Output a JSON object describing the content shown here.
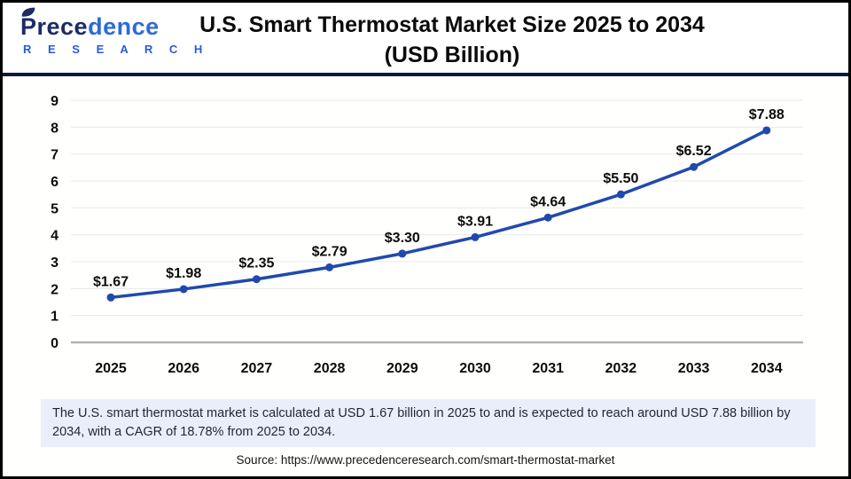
{
  "header": {
    "logo": {
      "part1": "Prece",
      "part2": "dence",
      "line2": "R E S E A R C H"
    },
    "title_line1": "U.S. Smart Thermostat Market Size 2025 to 2034",
    "title_line2": "(USD Billion)"
  },
  "chart_data": {
    "type": "line",
    "title": "U.S. Smart Thermostat Market Size 2025 to 2034 (USD Billion)",
    "categories": [
      "2025",
      "2026",
      "2027",
      "2028",
      "2029",
      "2030",
      "2031",
      "2032",
      "2033",
      "2034"
    ],
    "values": [
      1.67,
      1.98,
      2.35,
      2.79,
      3.3,
      3.91,
      4.64,
      5.5,
      6.52,
      7.88
    ],
    "point_labels": [
      "$1.67",
      "$1.98",
      "$2.35",
      "$2.79",
      "$3.30",
      "$3.91",
      "$4.64",
      "$5.50",
      "$6.52",
      "$7.88"
    ],
    "xlabel": "",
    "ylabel": "",
    "ylim": [
      0,
      9
    ],
    "ytick_step": 1,
    "grid": "horizontal",
    "legend_position": "none"
  },
  "colors": {
    "line": "#2149ad",
    "marker": "#2149ad",
    "grid": "#e8e8e8",
    "zero_axis": "#b3b3b3",
    "navy_rule": "#0d1742",
    "note_bg": "#e9eefa",
    "logo_navy": "#1e2c63",
    "logo_blue": "#2e6ad6"
  },
  "note": {
    "text": "The U.S. smart thermostat market is calculated at USD 1.67 billion in 2025 to and is expected to reach around USD 7.88 billion by 2034, with a CAGR of 18.78% from 2025 to 2034."
  },
  "source": {
    "text": "Source: https://www.precedenceresearch.com/smart-thermostat-market"
  }
}
